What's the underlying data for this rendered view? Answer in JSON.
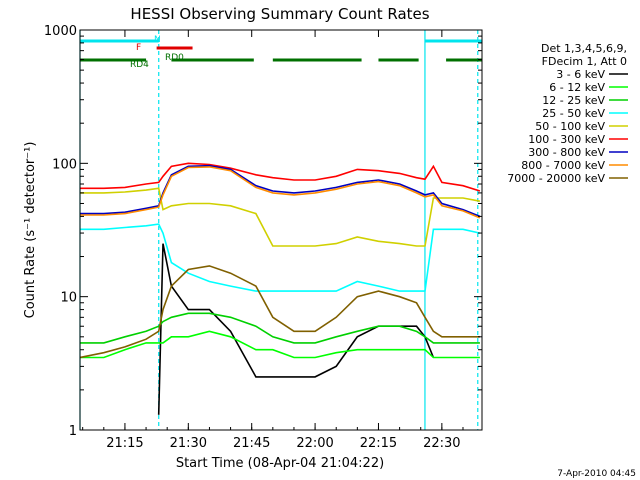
{
  "chart_data": {
    "type": "line",
    "title": "HESSI Observing Summary Count Rates",
    "xlabel": "Start Time (08-Apr-04 21:04:22)",
    "ylabel": "Count Rate (s⁻¹ detector⁻¹)",
    "y_scale": "log",
    "xlim": [
      "21:04:22",
      "22:39:30"
    ],
    "ylim": [
      1,
      1000
    ],
    "x_ticks": [
      "21:15",
      "21:30",
      "21:45",
      "22:00",
      "22:15",
      "22:30"
    ],
    "y_ticks": [
      "1",
      "10",
      "100",
      "1000"
    ],
    "legend_header": [
      "Det 1,3,4,5,6,9,",
      "FDecim 1, Att 0"
    ],
    "legend_position": "right",
    "timestamp": "7-Apr-2010 04:45",
    "flags": [
      {
        "label": "N",
        "color": "#00e5ee",
        "segments": [
          [
            "21:04:22",
            "21:23:00"
          ],
          [
            "22:26:00",
            "22:39:30"
          ]
        ]
      },
      {
        "label": "F",
        "color": "#e00000",
        "segments": [
          [
            "21:22:30",
            "21:31:00"
          ]
        ]
      },
      {
        "label": "RD0",
        "color": "#007000",
        "segments": []
      },
      {
        "label": "RD4",
        "color": "#007000",
        "segments": [
          [
            "21:04:22",
            "21:20:00"
          ],
          [
            "21:26:00",
            "21:45:30"
          ],
          [
            "21:50:00",
            "22:11:00"
          ],
          [
            "22:15:00",
            "22:24:30"
          ],
          [
            "22:31:00",
            "22:39:30"
          ]
        ]
      }
    ],
    "vertical_markers": [
      {
        "time": "21:04:22",
        "style": "solid",
        "color": "#00e5ee"
      },
      {
        "time": "21:23:00",
        "style": "dashed",
        "color": "#00e5ee"
      },
      {
        "time": "22:26:00",
        "style": "solid",
        "color": "#00e5ee"
      },
      {
        "time": "22:38:30",
        "style": "dashed",
        "color": "#00e5ee"
      }
    ],
    "x": [
      "21:04:22",
      "21:10",
      "21:15",
      "21:20",
      "21:23",
      "21:24",
      "21:26",
      "21:30",
      "21:35",
      "21:40",
      "21:46",
      "21:50",
      "21:55",
      "22:00",
      "22:05",
      "22:10",
      "22:15",
      "22:20",
      "22:24",
      "22:26",
      "22:28",
      "22:30",
      "22:35",
      "22:39"
    ],
    "series": [
      {
        "name": "3 - 6 keV",
        "color": "#000000",
        "values": [
          null,
          null,
          null,
          null,
          1.3,
          25,
          12,
          8,
          8,
          5.5,
          2.5,
          2.5,
          2.5,
          2.5,
          3,
          5,
          6,
          6,
          6,
          5,
          3.5,
          null,
          null,
          null
        ]
      },
      {
        "name": "6 - 12 keV",
        "color": "#00ff00",
        "values": [
          3.5,
          3.5,
          4,
          4.5,
          4.5,
          4.5,
          5,
          5,
          5.5,
          5,
          4,
          4,
          3.5,
          3.5,
          3.8,
          4,
          4,
          4,
          4,
          4,
          3.5,
          3.5,
          3.5,
          3.5
        ]
      },
      {
        "name": "12 - 25 keV",
        "color": "#00d000",
        "values": [
          4.5,
          4.5,
          5,
          5.5,
          6,
          6.5,
          7,
          7.5,
          7.5,
          7,
          6,
          5,
          4.5,
          4.5,
          5,
          5.5,
          6,
          6,
          5.5,
          5,
          4.5,
          4.5,
          4.5,
          4.5
        ]
      },
      {
        "name": "25 - 50 keV",
        "color": "#00ffff",
        "values": [
          32,
          32,
          33,
          34,
          35,
          30,
          18,
          15,
          13,
          12,
          11,
          11,
          11,
          11,
          11,
          13,
          12,
          11,
          11,
          11,
          32,
          32,
          32,
          30
        ]
      },
      {
        "name": "50 - 100 keV",
        "color": "#d0d000",
        "values": [
          60,
          60,
          61,
          63,
          65,
          45,
          48,
          50,
          50,
          48,
          42,
          24,
          24,
          24,
          25,
          28,
          26,
          25,
          24,
          24,
          55,
          55,
          55,
          52
        ]
      },
      {
        "name": "100 - 300 keV",
        "color": "#ff0000",
        "values": [
          65,
          65,
          66,
          70,
          72,
          80,
          95,
          100,
          98,
          92,
          82,
          78,
          75,
          75,
          80,
          90,
          88,
          84,
          78,
          76,
          95,
          72,
          68,
          62
        ]
      },
      {
        "name": "300 - 800 keV",
        "color": "#0000c0",
        "values": [
          42,
          42,
          43,
          46,
          48,
          60,
          82,
          95,
          96,
          90,
          68,
          62,
          60,
          62,
          66,
          72,
          75,
          70,
          62,
          58,
          60,
          50,
          45,
          40
        ]
      },
      {
        "name": "800 - 7000 keV",
        "color": "#ff8c00",
        "values": [
          41,
          41,
          42,
          45,
          47,
          58,
          80,
          93,
          94,
          88,
          66,
          60,
          58,
          60,
          64,
          70,
          73,
          68,
          60,
          56,
          58,
          48,
          44,
          39
        ]
      },
      {
        "name": "7000 - 20000 keV",
        "color": "#806000",
        "values": [
          3.5,
          3.8,
          4.2,
          4.8,
          5.5,
          8,
          12,
          16,
          17,
          15,
          12,
          7,
          5.5,
          5.5,
          7,
          10,
          11,
          10,
          9,
          7,
          5.5,
          5,
          5,
          5
        ]
      }
    ]
  }
}
